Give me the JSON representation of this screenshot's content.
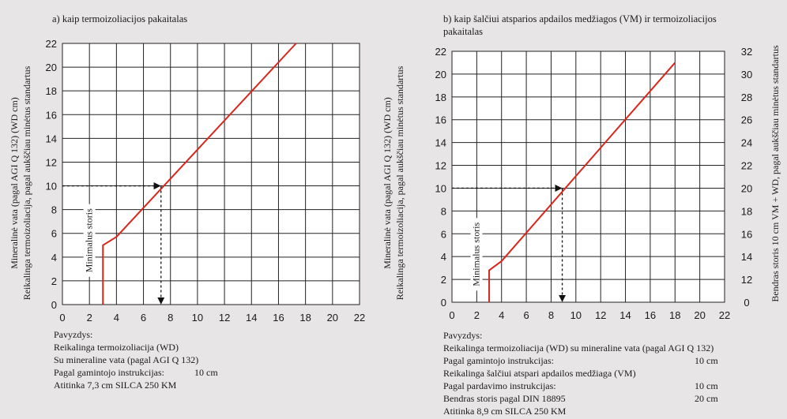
{
  "chart_data": [
    {
      "type": "line",
      "title": "a) kaip termoizoliacijos pakaitalas",
      "ylabel_line1": "Mineralinė vata (pagal AGI Q 132) (WD cm)",
      "ylabel_line2": "Reikalinga termoizoliacija, pagal aukščiau minėtus standartus",
      "xlim": [
        0,
        22
      ],
      "ylim": [
        0,
        22
      ],
      "xticks": [
        0,
        2,
        4,
        6,
        8,
        10,
        12,
        14,
        16,
        18,
        20,
        22
      ],
      "yticks": [
        0,
        2,
        4,
        6,
        8,
        10,
        12,
        14,
        16,
        18,
        20,
        22
      ],
      "grid": true,
      "series": [
        {
          "color": "#d9261c",
          "points": [
            [
              3.0,
              0
            ],
            [
              3.0,
              5.0
            ],
            [
              4.0,
              5.7
            ],
            [
              17.3,
              22.0
            ]
          ]
        }
      ],
      "annotations": {
        "guide": {
          "y": 10,
          "x": 7.3
        },
        "min_label": {
          "text": "Minimalus storis",
          "x": 2.2,
          "y": 5.4
        }
      }
    },
    {
      "type": "line",
      "title_line1": "b) kaip šalčiui atsparios apdailos medžiagos (VM) ir termoizoliacijos",
      "title_line2": "pakaitalas",
      "ylabel_line1": "Mineralinė vata (pagal AGI Q 132) (WD cm)",
      "ylabel_line2": "Reikalinga termoizoliacija, pagal aukščiau minėtus standartus",
      "y2label": "Bendras storis 10 cm VM + WD, pagal aukščiau minėtus standartus",
      "xlim": [
        0,
        22
      ],
      "ylim": [
        0,
        22
      ],
      "xticks": [
        0,
        2,
        4,
        6,
        8,
        10,
        12,
        14,
        16,
        18,
        20,
        22
      ],
      "yticks": [
        0,
        2,
        4,
        6,
        8,
        10,
        12,
        14,
        16,
        18,
        20,
        22
      ],
      "y2ticks": [
        0,
        12,
        14,
        16,
        18,
        20,
        22,
        24,
        26,
        28,
        30,
        32
      ],
      "grid": true,
      "series": [
        {
          "color": "#d9261c",
          "points": [
            [
              3.0,
              0
            ],
            [
              3.0,
              2.8
            ],
            [
              4.0,
              3.6
            ],
            [
              18.0,
              21.0
            ]
          ]
        }
      ],
      "annotations": {
        "guide": {
          "y": 10,
          "x": 8.9
        },
        "min_label": {
          "text": "Minimalus storis",
          "x": 2.2,
          "y": 4.2
        }
      }
    }
  ],
  "example_a": {
    "heading": "Pavyzdys:",
    "line1": "Reikalinga termoizoliacija (WD)",
    "line2": "Su mineraline vata (pagal AGI Q 132)",
    "line3_label": "Pagal gamintojo instrukcijas:",
    "line3_value": "10 cm",
    "line4": "Atitinka 7,3 cm SILCA 250 KM"
  },
  "example_b": {
    "heading": "Pavyzdys:",
    "line1": "Reikalinga termoizoliacija (WD) su mineraline vata (pagal AGI Q 132)",
    "line2_label": "Pagal gamintojo instrukcijas:",
    "line2_value": "10 cm",
    "line3": "Reikalinga šalčiui atspari apdailos medžiaga (VM)",
    "line4_label": "Pagal pardavimo instrukcijas:",
    "line4_value": "10 cm",
    "line5_label": "Bendras storis pagal DIN 18895",
    "line5_value": "20 cm",
    "line6": "Atitinka 8,9 cm SILCA 250 KM"
  }
}
